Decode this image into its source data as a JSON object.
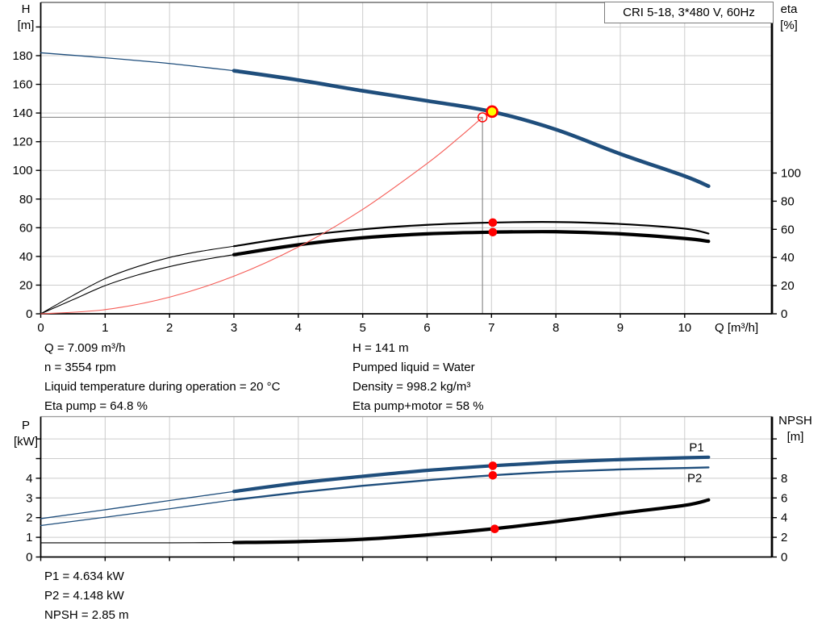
{
  "title": "CRI 5-18, 3*480 V, 60Hz",
  "colors": {
    "blue": "#1f4e7c",
    "red": "#ff0000",
    "system_red": "#f55c56",
    "yellow": "#ffff00",
    "grid": "#cccccc",
    "crosshair": "#8c8c8c",
    "axis": "#000000",
    "top_border_upper": "#555555",
    "top_border_lower": "#999999"
  },
  "axis_corner_labels": {
    "top_left_line1": "H",
    "top_left_line2": "[m]",
    "top_right_line1": "eta",
    "top_right_line2": "[%]",
    "bottom_left_line1": "P",
    "bottom_left_line2": "[kW]",
    "bottom_right_line1": "NPSH",
    "bottom_right_line2": "[m]",
    "x_axis_label": "Q [m³/h]"
  },
  "info": {
    "left_column": [
      "Q = 7.009 m³/h",
      "n = 3554 rpm",
      "Liquid temperature during operation = 20 °C",
      "Eta pump = 64.8 %"
    ],
    "right_column": [
      "H = 141 m",
      "Pumped liquid = Water",
      "Density = 998.2 kg/m³",
      "Eta pump+motor = 58 %"
    ],
    "bottom": [
      "P1 = 4.634 kW",
      "P2 = 4.148 kW",
      "NPSH = 2.85 m"
    ]
  },
  "chart_data": [
    {
      "type": "line",
      "title": "CRI 5-18, 3*480 V, 60Hz",
      "x_axis": {
        "label": "Q [m³/h]",
        "ticks": [
          0,
          1,
          2,
          3,
          4,
          5,
          6,
          7,
          8,
          9,
          10
        ],
        "range": [
          0,
          11.36
        ],
        "show_labels": true
      },
      "y_left": {
        "label": "H [m]",
        "range": [
          0,
          217
        ],
        "tick_values": [
          0,
          20,
          40,
          60,
          80,
          100,
          120,
          140,
          160,
          180,
          200
        ],
        "tick_labels": [
          "0",
          "20",
          "40",
          "60",
          "80",
          "100",
          "120",
          "140",
          "160",
          "180",
          ""
        ]
      },
      "y_right": {
        "label": "eta [%]",
        "range": [
          0,
          221
        ],
        "tick_values": [
          0,
          20,
          40,
          60,
          80,
          100
        ],
        "tick_labels": [
          "0",
          "20",
          "40",
          "60",
          "80",
          "100"
        ]
      },
      "series": [
        {
          "name": "head-curve",
          "axis": "left",
          "color": "#1f4e7c",
          "w_thin": 1.3,
          "w_bold": 4.6,
          "bold_from": 3,
          "q": [
            0,
            1,
            2,
            3,
            4,
            5,
            6,
            7,
            8,
            9,
            10,
            10.37
          ],
          "v": [
            182,
            178.5,
            174.5,
            169.5,
            163,
            155.5,
            148.5,
            141,
            128.5,
            111.5,
            96,
            89
          ]
        },
        {
          "name": "eta-pump-curve",
          "axis": "right",
          "color": "#000000",
          "w_thin": 1.1,
          "w_bold": 2.2,
          "bold_from": 3,
          "q": [
            0,
            0.5,
            1,
            1.5,
            2,
            2.5,
            3,
            4,
            5,
            6,
            7,
            8,
            9,
            10,
            10.37
          ],
          "v": [
            0,
            13,
            25,
            33.5,
            40,
            44.5,
            48,
            55,
            60,
            63.2,
            64.8,
            65.2,
            63.8,
            60.5,
            57
          ]
        },
        {
          "name": "eta-pump-motor-curve",
          "axis": "right",
          "color": "#000000",
          "w_thin": 1.1,
          "w_bold": 4.2,
          "bold_from": 3,
          "q": [
            0,
            0.5,
            1,
            1.5,
            2,
            2.5,
            3,
            4,
            5,
            6,
            7,
            8,
            9,
            10,
            10.37
          ],
          "v": [
            0,
            10,
            20,
            27.5,
            33.5,
            38.2,
            42,
            49,
            54,
            56.8,
            58,
            58.3,
            56.8,
            53.5,
            51.5
          ]
        },
        {
          "name": "system-curve",
          "axis": "left",
          "color": "#f55c56",
          "w_thin": 1.1,
          "w_bold": 1.1,
          "bold_from": 99,
          "q": [
            0,
            1,
            2,
            3,
            4,
            5,
            6,
            6.5,
            6.86
          ],
          "v": [
            0,
            2.9,
            11.6,
            26.2,
            46.6,
            72.8,
            104.8,
            123,
            137
          ]
        }
      ],
      "crosshair": {
        "q": 6.86,
        "v": 137
      },
      "markers": [
        {
          "name": "duty-request-point",
          "style": "open-red-circle",
          "axis": "left",
          "q": 6.86,
          "v": 137
        },
        {
          "name": "operating-point",
          "style": "yellow-dot",
          "axis": "left",
          "q": 7.009,
          "v": 141
        },
        {
          "name": "eta-pump-duty-dot",
          "style": "red-dot",
          "axis": "right",
          "q": 7.02,
          "v": 64.8
        },
        {
          "name": "eta-pump-motor-duty-dot",
          "style": "red-dot",
          "axis": "right",
          "q": 7.02,
          "v": 58
        }
      ]
    },
    {
      "type": "line",
      "title": "",
      "x_axis": {
        "label": "",
        "ticks": [
          0,
          1,
          2,
          3,
          4,
          5,
          6,
          7,
          8,
          9,
          10
        ],
        "range": [
          0,
          11.36
        ],
        "show_labels": false
      },
      "y_left": {
        "label": "P [kW]",
        "range": [
          0,
          7.15
        ],
        "tick_values": [
          0,
          1,
          2,
          3,
          4,
          5,
          6
        ],
        "tick_labels": [
          "0",
          "1",
          "2",
          "3",
          "4",
          "",
          ""
        ]
      },
      "y_right": {
        "label": "NPSH [m]",
        "range": [
          0,
          14.3
        ],
        "tick_values": [
          0,
          2,
          4,
          6,
          8,
          10,
          12
        ],
        "tick_labels": [
          "0",
          "2",
          "4",
          "6",
          "8",
          "",
          ""
        ]
      },
      "series": [
        {
          "name": "P1-curve",
          "axis": "left",
          "color": "#1f4e7c",
          "w_thin": 1.3,
          "w_bold": 4.2,
          "bold_from": 3,
          "label": "P1",
          "label_pos": {
            "q": 10.07,
            "v": 5.37
          },
          "q": [
            0,
            1,
            2,
            3,
            4,
            5,
            6,
            7,
            8,
            9,
            10,
            10.37
          ],
          "v": [
            1.95,
            2.4,
            2.87,
            3.33,
            3.76,
            4.1,
            4.4,
            4.634,
            4.82,
            4.95,
            5.04,
            5.07
          ]
        },
        {
          "name": "P2-curve",
          "axis": "left",
          "color": "#1f4e7c",
          "w_thin": 1.3,
          "w_bold": 2.4,
          "bold_from": 3,
          "label": "P2",
          "label_pos": {
            "q": 10.04,
            "v": 3.81
          },
          "q": [
            0,
            1,
            2,
            3,
            4,
            5,
            6,
            7,
            8,
            9,
            10,
            10.37
          ],
          "v": [
            1.6,
            2.02,
            2.45,
            2.9,
            3.28,
            3.62,
            3.9,
            4.148,
            4.33,
            4.45,
            4.52,
            4.55
          ]
        },
        {
          "name": "NPSH-curve",
          "axis": "right",
          "color": "#000000",
          "w_thin": 1.2,
          "w_bold": 4.2,
          "bold_from": 3,
          "q": [
            0,
            1,
            2,
            3,
            4,
            5,
            6,
            7,
            8,
            9,
            10,
            10.37
          ],
          "v": [
            1.44,
            1.44,
            1.44,
            1.47,
            1.56,
            1.8,
            2.25,
            2.85,
            3.6,
            4.45,
            5.25,
            5.8
          ]
        }
      ],
      "markers": [
        {
          "name": "p1-duty-dot",
          "style": "red-dot",
          "axis": "left",
          "q": 7.02,
          "v": 4.634
        },
        {
          "name": "p2-duty-dot",
          "style": "red-dot",
          "axis": "left",
          "q": 7.02,
          "v": 4.148
        },
        {
          "name": "npsh-duty-dot",
          "style": "red-dot",
          "axis": "right",
          "q": 7.05,
          "v": 2.85
        }
      ]
    }
  ]
}
